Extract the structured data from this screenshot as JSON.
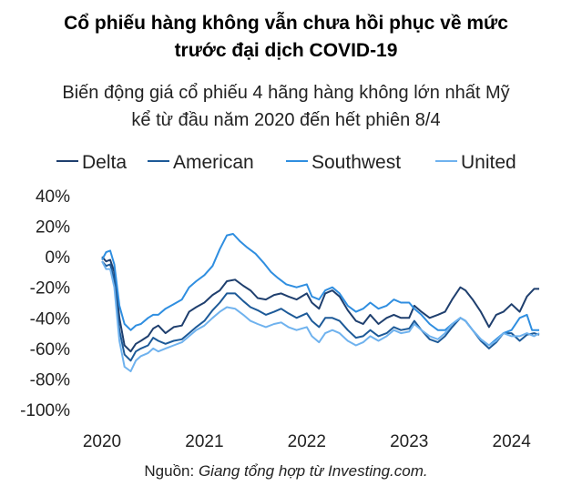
{
  "chart_data": {
    "type": "line",
    "title_line1": "Cổ phiếu hàng không vẫn chưa hồi phục về mức",
    "title_line2": "trước đại dịch COVID-19",
    "subtitle_line1": "Biến động giá cổ phiếu 4 hãng hàng không lớn nhất Mỹ",
    "subtitle_line2": "kể từ đầu năm 2020 đến hết phiên 8/4",
    "source_prefix": "Nguồn: ",
    "source_text": "Giang tổng hợp từ Investing.com.",
    "ylim": [
      -100,
      40
    ],
    "yticks": [
      40,
      20,
      0,
      -20,
      -40,
      -60,
      -80,
      -100
    ],
    "ytick_labels": [
      "40%",
      "20%",
      "0%",
      "-20%",
      "-40%",
      "-60%",
      "-80%",
      "-100%"
    ],
    "xlim": [
      2020.0,
      2024.27
    ],
    "xticks": [
      2020,
      2021,
      2022,
      2023,
      2024
    ],
    "xtick_labels": [
      "2020",
      "2021",
      "2022",
      "2023",
      "2024"
    ],
    "series": [
      {
        "name": "Delta",
        "color": "#1f3f6e",
        "points": [
          [
            2020.0,
            0
          ],
          [
            2020.04,
            -3
          ],
          [
            2020.08,
            -2
          ],
          [
            2020.12,
            -10
          ],
          [
            2020.17,
            -40
          ],
          [
            2020.22,
            -58
          ],
          [
            2020.28,
            -62
          ],
          [
            2020.33,
            -57
          ],
          [
            2020.38,
            -55
          ],
          [
            2020.45,
            -52
          ],
          [
            2020.5,
            -47
          ],
          [
            2020.55,
            -45
          ],
          [
            2020.62,
            -50
          ],
          [
            2020.7,
            -46
          ],
          [
            2020.78,
            -45
          ],
          [
            2020.85,
            -36
          ],
          [
            2020.92,
            -33
          ],
          [
            2021.0,
            -30
          ],
          [
            2021.08,
            -25
          ],
          [
            2021.15,
            -22
          ],
          [
            2021.22,
            -16
          ],
          [
            2021.3,
            -15
          ],
          [
            2021.38,
            -19
          ],
          [
            2021.45,
            -22
          ],
          [
            2021.52,
            -27
          ],
          [
            2021.6,
            -28
          ],
          [
            2021.68,
            -25
          ],
          [
            2021.75,
            -24
          ],
          [
            2021.82,
            -26
          ],
          [
            2021.9,
            -28
          ],
          [
            2022.0,
            -24
          ],
          [
            2022.05,
            -30
          ],
          [
            2022.12,
            -34
          ],
          [
            2022.18,
            -24
          ],
          [
            2022.25,
            -22
          ],
          [
            2022.32,
            -26
          ],
          [
            2022.4,
            -35
          ],
          [
            2022.48,
            -42
          ],
          [
            2022.55,
            -44
          ],
          [
            2022.62,
            -38
          ],
          [
            2022.7,
            -44
          ],
          [
            2022.78,
            -40
          ],
          [
            2022.85,
            -38
          ],
          [
            2022.92,
            -40
          ],
          [
            2023.0,
            -40
          ],
          [
            2023.05,
            -32
          ],
          [
            2023.12,
            -36
          ],
          [
            2023.2,
            -40
          ],
          [
            2023.28,
            -38
          ],
          [
            2023.35,
            -36
          ],
          [
            2023.42,
            -28
          ],
          [
            2023.5,
            -20
          ],
          [
            2023.55,
            -22
          ],
          [
            2023.62,
            -28
          ],
          [
            2023.7,
            -36
          ],
          [
            2023.78,
            -46
          ],
          [
            2023.85,
            -38
          ],
          [
            2023.92,
            -36
          ],
          [
            2024.0,
            -31
          ],
          [
            2024.08,
            -36
          ],
          [
            2024.15,
            -26
          ],
          [
            2024.22,
            -21
          ],
          [
            2024.27,
            -21
          ]
        ]
      },
      {
        "name": "American",
        "color": "#1d5a98",
        "points": [
          [
            2020.0,
            -3
          ],
          [
            2020.04,
            -6
          ],
          [
            2020.08,
            -5
          ],
          [
            2020.12,
            -15
          ],
          [
            2020.17,
            -48
          ],
          [
            2020.22,
            -64
          ],
          [
            2020.28,
            -68
          ],
          [
            2020.33,
            -62
          ],
          [
            2020.38,
            -60
          ],
          [
            2020.45,
            -58
          ],
          [
            2020.5,
            -53
          ],
          [
            2020.55,
            -55
          ],
          [
            2020.62,
            -57
          ],
          [
            2020.7,
            -55
          ],
          [
            2020.78,
            -54
          ],
          [
            2020.85,
            -50
          ],
          [
            2020.92,
            -46
          ],
          [
            2021.0,
            -42
          ],
          [
            2021.08,
            -35
          ],
          [
            2021.15,
            -30
          ],
          [
            2021.22,
            -24
          ],
          [
            2021.3,
            -24
          ],
          [
            2021.38,
            -29
          ],
          [
            2021.45,
            -33
          ],
          [
            2021.52,
            -35
          ],
          [
            2021.6,
            -38
          ],
          [
            2021.68,
            -36
          ],
          [
            2021.75,
            -34
          ],
          [
            2021.82,
            -37
          ],
          [
            2021.9,
            -40
          ],
          [
            2022.0,
            -37
          ],
          [
            2022.05,
            -42
          ],
          [
            2022.12,
            -46
          ],
          [
            2022.18,
            -40
          ],
          [
            2022.25,
            -40
          ],
          [
            2022.32,
            -42
          ],
          [
            2022.4,
            -48
          ],
          [
            2022.48,
            -53
          ],
          [
            2022.55,
            -52
          ],
          [
            2022.62,
            -48
          ],
          [
            2022.7,
            -52
          ],
          [
            2022.78,
            -50
          ],
          [
            2022.85,
            -46
          ],
          [
            2022.92,
            -48
          ],
          [
            2023.0,
            -47
          ],
          [
            2023.05,
            -42
          ],
          [
            2023.12,
            -48
          ],
          [
            2023.2,
            -54
          ],
          [
            2023.28,
            -56
          ],
          [
            2023.35,
            -52
          ],
          [
            2023.42,
            -46
          ],
          [
            2023.5,
            -40
          ],
          [
            2023.55,
            -42
          ],
          [
            2023.62,
            -48
          ],
          [
            2023.7,
            -55
          ],
          [
            2023.78,
            -60
          ],
          [
            2023.85,
            -56
          ],
          [
            2023.92,
            -50
          ],
          [
            2024.0,
            -50
          ],
          [
            2024.08,
            -55
          ],
          [
            2024.15,
            -51
          ],
          [
            2024.22,
            -50
          ],
          [
            2024.27,
            -51
          ]
        ]
      },
      {
        "name": "Southwest",
        "color": "#2f8ee0",
        "points": [
          [
            2020.0,
            -2
          ],
          [
            2020.04,
            3
          ],
          [
            2020.08,
            4
          ],
          [
            2020.12,
            -5
          ],
          [
            2020.17,
            -32
          ],
          [
            2020.22,
            -44
          ],
          [
            2020.28,
            -48
          ],
          [
            2020.33,
            -45
          ],
          [
            2020.38,
            -44
          ],
          [
            2020.45,
            -40
          ],
          [
            2020.5,
            -38
          ],
          [
            2020.55,
            -38
          ],
          [
            2020.62,
            -34
          ],
          [
            2020.7,
            -31
          ],
          [
            2020.78,
            -28
          ],
          [
            2020.85,
            -20
          ],
          [
            2020.92,
            -16
          ],
          [
            2021.0,
            -12
          ],
          [
            2021.08,
            -6
          ],
          [
            2021.15,
            5
          ],
          [
            2021.22,
            14
          ],
          [
            2021.28,
            15
          ],
          [
            2021.35,
            10
          ],
          [
            2021.42,
            6
          ],
          [
            2021.5,
            2
          ],
          [
            2021.58,
            -4
          ],
          [
            2021.65,
            -10
          ],
          [
            2021.72,
            -14
          ],
          [
            2021.8,
            -18
          ],
          [
            2021.9,
            -20
          ],
          [
            2022.0,
            -18
          ],
          [
            2022.05,
            -26
          ],
          [
            2022.12,
            -28
          ],
          [
            2022.18,
            -22
          ],
          [
            2022.25,
            -20
          ],
          [
            2022.32,
            -24
          ],
          [
            2022.4,
            -32
          ],
          [
            2022.48,
            -36
          ],
          [
            2022.55,
            -34
          ],
          [
            2022.62,
            -30
          ],
          [
            2022.7,
            -34
          ],
          [
            2022.78,
            -32
          ],
          [
            2022.85,
            -28
          ],
          [
            2022.92,
            -30
          ],
          [
            2023.0,
            -30
          ],
          [
            2023.05,
            -34
          ],
          [
            2023.12,
            -38
          ],
          [
            2023.2,
            -44
          ],
          [
            2023.28,
            -48
          ],
          [
            2023.35,
            -48
          ],
          [
            2023.42,
            -44
          ],
          [
            2023.5,
            -40
          ],
          [
            2023.55,
            -42
          ],
          [
            2023.62,
            -48
          ],
          [
            2023.7,
            -54
          ],
          [
            2023.78,
            -58
          ],
          [
            2023.85,
            -54
          ],
          [
            2023.92,
            -50
          ],
          [
            2024.0,
            -48
          ],
          [
            2024.08,
            -40
          ],
          [
            2024.15,
            -38
          ],
          [
            2024.2,
            -48
          ],
          [
            2024.27,
            -48
          ]
        ]
      },
      {
        "name": "United",
        "color": "#6fb2ee",
        "points": [
          [
            2020.0,
            -3
          ],
          [
            2020.04,
            -8
          ],
          [
            2020.08,
            -8
          ],
          [
            2020.12,
            -20
          ],
          [
            2020.17,
            -55
          ],
          [
            2020.22,
            -72
          ],
          [
            2020.28,
            -75
          ],
          [
            2020.33,
            -68
          ],
          [
            2020.38,
            -65
          ],
          [
            2020.45,
            -63
          ],
          [
            2020.5,
            -60
          ],
          [
            2020.55,
            -62
          ],
          [
            2020.62,
            -60
          ],
          [
            2020.7,
            -58
          ],
          [
            2020.78,
            -56
          ],
          [
            2020.85,
            -52
          ],
          [
            2020.92,
            -48
          ],
          [
            2021.0,
            -45
          ],
          [
            2021.08,
            -40
          ],
          [
            2021.15,
            -36
          ],
          [
            2021.22,
            -33
          ],
          [
            2021.3,
            -34
          ],
          [
            2021.38,
            -38
          ],
          [
            2021.45,
            -42
          ],
          [
            2021.52,
            -44
          ],
          [
            2021.6,
            -46
          ],
          [
            2021.68,
            -44
          ],
          [
            2021.75,
            -43
          ],
          [
            2021.82,
            -46
          ],
          [
            2021.9,
            -48
          ],
          [
            2022.0,
            -46
          ],
          [
            2022.05,
            -52
          ],
          [
            2022.12,
            -56
          ],
          [
            2022.18,
            -50
          ],
          [
            2022.25,
            -48
          ],
          [
            2022.32,
            -50
          ],
          [
            2022.4,
            -55
          ],
          [
            2022.48,
            -58
          ],
          [
            2022.55,
            -56
          ],
          [
            2022.62,
            -52
          ],
          [
            2022.7,
            -55
          ],
          [
            2022.78,
            -52
          ],
          [
            2022.85,
            -48
          ],
          [
            2022.92,
            -50
          ],
          [
            2023.0,
            -49
          ],
          [
            2023.05,
            -44
          ],
          [
            2023.12,
            -48
          ],
          [
            2023.2,
            -52
          ],
          [
            2023.28,
            -54
          ],
          [
            2023.35,
            -50
          ],
          [
            2023.42,
            -44
          ],
          [
            2023.5,
            -40
          ],
          [
            2023.55,
            -42
          ],
          [
            2023.62,
            -48
          ],
          [
            2023.7,
            -54
          ],
          [
            2023.78,
            -58
          ],
          [
            2023.85,
            -55
          ],
          [
            2023.92,
            -50
          ],
          [
            2024.0,
            -52
          ],
          [
            2024.08,
            -52
          ],
          [
            2024.15,
            -50
          ],
          [
            2024.22,
            -52
          ],
          [
            2024.27,
            -50
          ]
        ]
      }
    ]
  }
}
